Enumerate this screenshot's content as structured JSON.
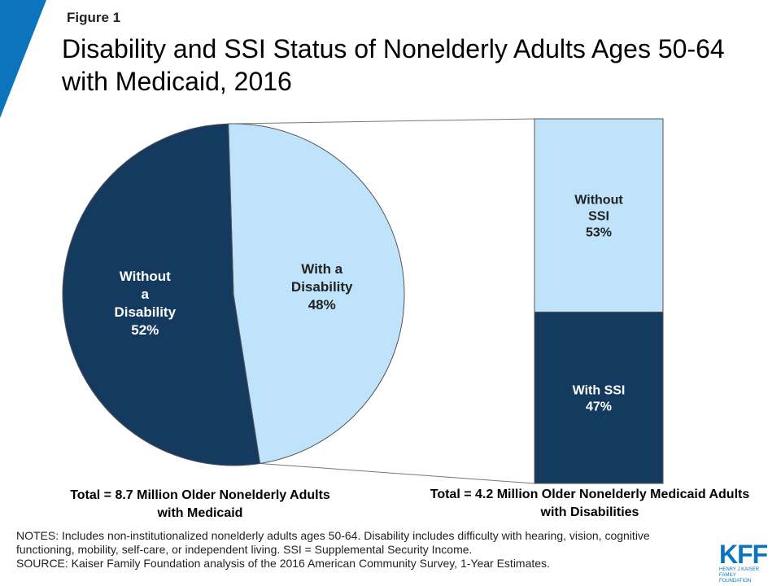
{
  "figure_label": "Figure 1",
  "title": "Disability and SSI Status of Nonelderly Adults Ages 50-64 with Medicaid, 2016",
  "colors": {
    "dark": "#143a5f",
    "light": "#bfe3fb",
    "accent": "#0b74bd"
  },
  "captions": {
    "pie": "Total = 8.7 Million Older Nonelderly Adults with Medicaid",
    "bar": "Total = 4.2 Million Older Nonelderly Medicaid Adults with Disabilities"
  },
  "notes": {
    "notes_text": "NOTES: Includes non-institutionalized nonelderly adults ages 50-64. Disability includes difficulty with hearing, vision, cognitive functioning, mobility, self-care, or independent living. SSI = Supplemental Security Income.",
    "source_text": "SOURCE: Kaiser Family Foundation analysis of the 2016 American Community Survey, 1-Year Estimates."
  },
  "logo": {
    "main": "KFF",
    "sub": "HENRY J KAISER FAMILY FOUNDATION"
  },
  "chart_data": [
    {
      "type": "pie",
      "slices": [
        {
          "label_lines": [
            "With a",
            "Disability",
            "48%"
          ],
          "value": 48,
          "color": "#bfe3fb"
        },
        {
          "label_lines": [
            "Without",
            "a",
            "Disability",
            "52%"
          ],
          "value": 52,
          "color": "#143a5f"
        }
      ]
    },
    {
      "type": "bar",
      "stacked": true,
      "segments": [
        {
          "label_lines": [
            "Without",
            "SSI",
            "53%"
          ],
          "value": 53,
          "color": "#bfe3fb"
        },
        {
          "label_lines": [
            "With SSI",
            "47%"
          ],
          "value": 47,
          "color": "#143a5f"
        }
      ]
    }
  ]
}
